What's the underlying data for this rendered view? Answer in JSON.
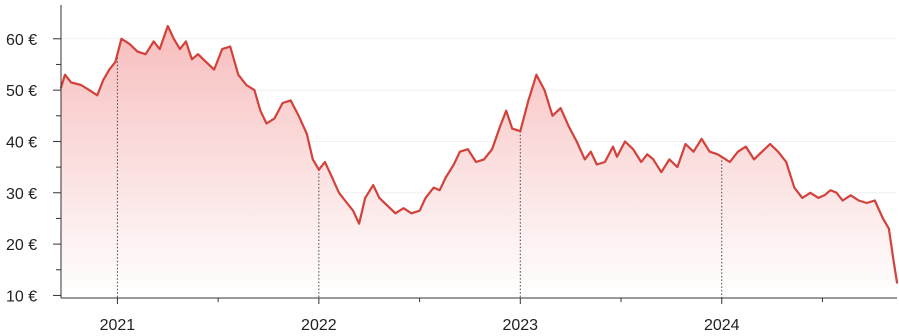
{
  "chart_data": {
    "type": "area",
    "title": "",
    "xlabel": "",
    "ylabel": "",
    "currency_suffix": " €",
    "xlim": [
      2020.72,
      2024.87
    ],
    "ylim": [
      9.5,
      66
    ],
    "y_ticks": [
      10,
      20,
      30,
      40,
      50,
      60
    ],
    "y_tick_labels": [
      "10 €",
      "20 €",
      "30 €",
      "40 €",
      "50 €",
      "60 €"
    ],
    "x_ticks": [
      2021,
      2022,
      2023,
      2024
    ],
    "x_tick_labels": [
      "2021",
      "2022",
      "2023",
      "2024"
    ],
    "year_markers": [
      2021,
      2022,
      2023,
      2024
    ],
    "grid": true,
    "legend": "none",
    "colors": {
      "line": "#d2413a",
      "fill_top": "#f7b9b9",
      "fill_bottom": "#ffffff"
    },
    "series": [
      {
        "x": [
          2020.72,
          2020.74,
          2020.77,
          2020.82,
          2020.86,
          2020.9,
          2020.93,
          2020.96,
          2020.99,
          2021.02,
          2021.06,
          2021.1,
          2021.14,
          2021.18,
          2021.21,
          2021.25,
          2021.28,
          2021.31,
          2021.34,
          2021.37,
          2021.4,
          2021.44,
          2021.48,
          2021.52,
          2021.56,
          2021.6,
          2021.64,
          2021.68,
          2021.71,
          2021.74,
          2021.78,
          2021.82,
          2021.86,
          2021.9,
          2021.94,
          2021.97,
          2022.0,
          2022.03,
          2022.06,
          2022.1,
          2022.13,
          2022.17,
          2022.2,
          2022.23,
          2022.27,
          2022.3,
          2022.34,
          2022.38,
          2022.42,
          2022.46,
          2022.5,
          2022.53,
          2022.57,
          2022.6,
          2022.63,
          2022.67,
          2022.7,
          2022.74,
          2022.78,
          2022.82,
          2022.86,
          2022.9,
          2022.93,
          2022.96,
          2023.0,
          2023.04,
          2023.08,
          2023.12,
          2023.16,
          2023.2,
          2023.24,
          2023.28,
          2023.32,
          2023.35,
          2023.38,
          2023.42,
          2023.46,
          2023.48,
          2023.52,
          2023.56,
          2023.6,
          2023.63,
          2023.66,
          2023.7,
          2023.74,
          2023.78,
          2023.82,
          2023.86,
          2023.9,
          2023.94,
          2023.98,
          2024.0,
          2024.04,
          2024.08,
          2024.12,
          2024.16,
          2024.2,
          2024.24,
          2024.28,
          2024.32,
          2024.36,
          2024.4,
          2024.44,
          2024.48,
          2024.51,
          2024.54,
          2024.57,
          2024.6,
          2024.64,
          2024.68,
          2024.72,
          2024.76,
          2024.8,
          2024.83,
          2024.85,
          2024.87
        ],
        "values": [
          50.5,
          53.0,
          51.5,
          51.0,
          50.0,
          49.0,
          52.0,
          54.0,
          55.5,
          60.0,
          59.0,
          57.5,
          57.0,
          59.5,
          58.0,
          62.5,
          60.0,
          58.0,
          59.5,
          56.0,
          57.0,
          55.5,
          54.0,
          58.0,
          58.5,
          53.0,
          51.0,
          50.0,
          46.0,
          43.5,
          44.5,
          47.5,
          48.0,
          45.0,
          41.5,
          36.5,
          34.5,
          36.0,
          33.5,
          30.0,
          28.5,
          26.5,
          24.0,
          29.0,
          31.5,
          29.0,
          27.5,
          26.0,
          27.0,
          26.0,
          26.5,
          29.0,
          31.0,
          30.5,
          33.0,
          35.5,
          38.0,
          38.5,
          36.0,
          36.5,
          38.5,
          43.0,
          46.0,
          42.5,
          42.0,
          48.0,
          53.0,
          50.0,
          45.0,
          46.5,
          43.0,
          40.0,
          36.5,
          38.0,
          35.5,
          36.0,
          39.0,
          37.0,
          40.0,
          38.5,
          36.0,
          37.5,
          36.5,
          34.0,
          36.5,
          35.0,
          39.5,
          38.0,
          40.5,
          38.0,
          37.5,
          37.0,
          36.0,
          38.0,
          39.0,
          36.5,
          38.0,
          39.5,
          38.0,
          36.0,
          31.0,
          29.0,
          30.0,
          29.0,
          29.5,
          30.5,
          30.0,
          28.5,
          29.5,
          28.5,
          28.0,
          28.5,
          25.0,
          23.0,
          17.5,
          12.5
        ]
      }
    ]
  }
}
